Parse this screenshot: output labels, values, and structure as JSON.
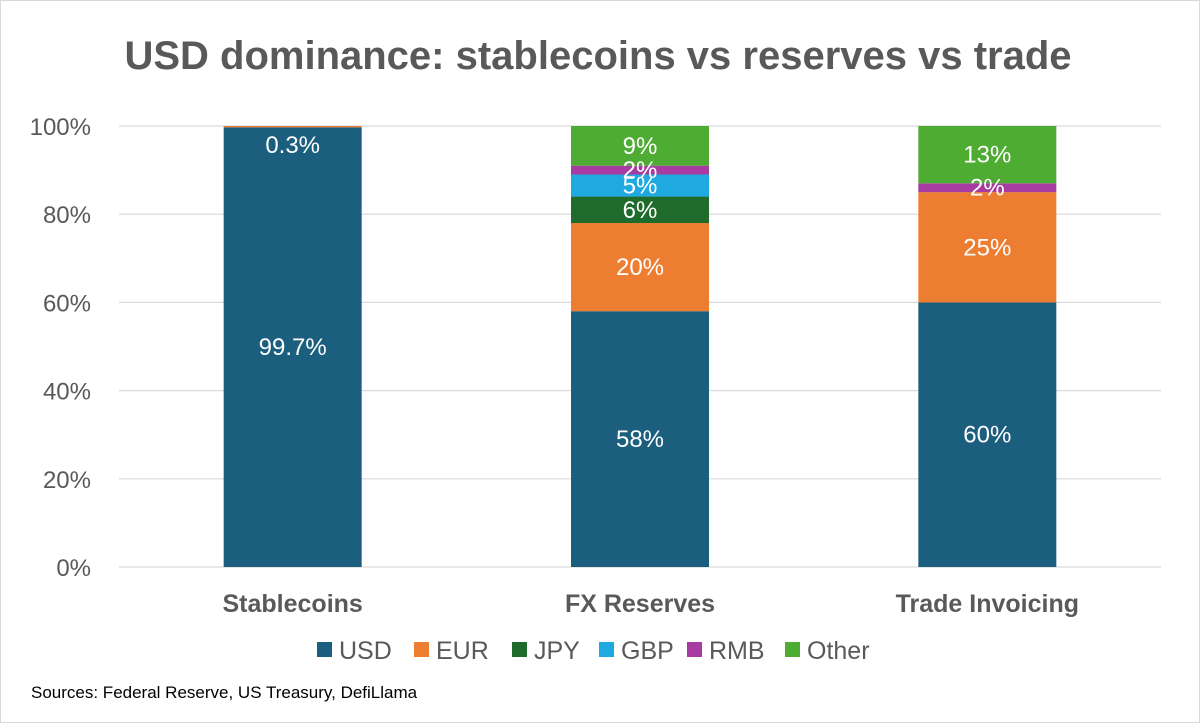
{
  "chart_data": {
    "type": "bar",
    "stacked": true,
    "title": "USD dominance: stablecoins vs reserves vs trade",
    "categories": [
      "Stablecoins",
      "FX Reserves",
      "Trade Invoicing"
    ],
    "ylim": [
      0,
      100
    ],
    "yticks": [
      0,
      20,
      40,
      60,
      80,
      100
    ],
    "ytick_labels": [
      "0%",
      "20%",
      "40%",
      "60%",
      "80%",
      "100%"
    ],
    "grid": true,
    "legend_position": "bottom",
    "series": [
      {
        "name": "USD",
        "color": "#1b5e7e",
        "values": [
          99.7,
          58,
          60
        ],
        "labels": [
          "99.7%",
          "58%",
          "60%"
        ]
      },
      {
        "name": "EUR",
        "color": "#ed7d31",
        "values": [
          0.3,
          20,
          25
        ],
        "labels": [
          "0.3%",
          "20%",
          "25%"
        ]
      },
      {
        "name": "JPY",
        "color": "#1e6b2b",
        "values": [
          0,
          6,
          0
        ],
        "labels": [
          "",
          "6%",
          ""
        ]
      },
      {
        "name": "GBP",
        "color": "#1ea9e0",
        "values": [
          0,
          5,
          0
        ],
        "labels": [
          "",
          "5%",
          ""
        ]
      },
      {
        "name": "RMB",
        "color": "#a83ba2",
        "values": [
          0,
          2,
          2
        ],
        "labels": [
          "",
          "2%",
          "2%"
        ]
      },
      {
        "name": "Other",
        "color": "#4eac33",
        "values": [
          0,
          9,
          13
        ],
        "labels": [
          "",
          "9%",
          "13%"
        ]
      }
    ]
  },
  "source_note": "Sources: Federal Reserve, US Treasury, DefiLlama"
}
